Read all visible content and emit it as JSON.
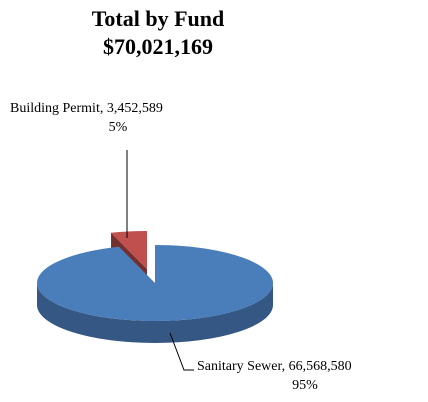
{
  "chart_data": {
    "type": "pie",
    "title": "Total by Fund",
    "subtitle": "$70,021,169",
    "categories": [
      "Building Permit",
      "Sanitary Sewer"
    ],
    "values": [
      3452589,
      66568580
    ],
    "value_labels": [
      "3,452,589",
      "66,568,580"
    ],
    "percent_labels": [
      "5%",
      "95%"
    ],
    "label_separator": ", ",
    "colors": [
      "#c0504d",
      "#4a7ebb"
    ],
    "exploded": [
      true,
      false
    ]
  }
}
